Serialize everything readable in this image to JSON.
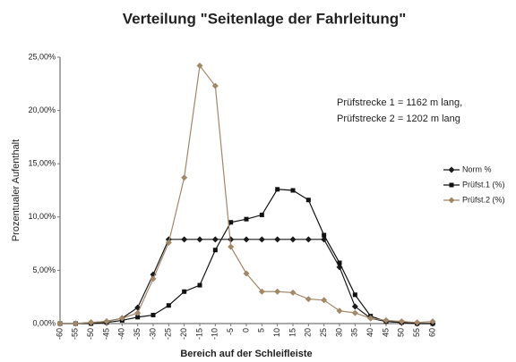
{
  "chart_data": {
    "type": "line",
    "title": "Verteilung \"Seitenlage der Fahrleitung\"",
    "xlabel": "Bereich auf der Schleifleiste",
    "ylabel": "Prozentualer Aufenthalt",
    "annotations": [
      "Prüfstrecke 1 = 1162 m lang,",
      "Prüfstrecke 2 = 1202 m lang"
    ],
    "categories": [
      "-60",
      "-55",
      "-50",
      "-45",
      "-40",
      "-35",
      "-30",
      "-25",
      "-20",
      "-15",
      "-10",
      "-5",
      "0",
      "5",
      "10",
      "15",
      "20",
      "25",
      "30",
      "35",
      "40",
      "45",
      "50",
      "55",
      "60"
    ],
    "series": [
      {
        "name": "Norm %",
        "color": "#1a1a1a",
        "marker": "diamond",
        "values": [
          0,
          0,
          0.1,
          0.2,
          0.5,
          1.5,
          4.6,
          7.9,
          7.9,
          7.9,
          7.9,
          7.9,
          7.9,
          7.9,
          7.9,
          7.9,
          7.9,
          7.9,
          5.3,
          1.6,
          0.5,
          0.2,
          0.1,
          0,
          0
        ]
      },
      {
        "name": "Prüfst.1 (%)",
        "color": "#111111",
        "marker": "square",
        "values": [
          0,
          0,
          0,
          0.1,
          0.3,
          0.6,
          0.8,
          1.7,
          3.0,
          3.6,
          6.9,
          9.5,
          9.8,
          10.2,
          12.6,
          12.5,
          11.6,
          8.3,
          5.7,
          2.7,
          0.7,
          0.2,
          0.1,
          0,
          0
        ]
      },
      {
        "name": "Prüfst.2 (%)",
        "color": "#a08868",
        "marker": "diamond",
        "values": [
          0,
          0,
          0.1,
          0.2,
          0.5,
          1.0,
          4.2,
          7.6,
          13.7,
          24.2,
          22.3,
          7.2,
          4.7,
          3.0,
          3.0,
          2.9,
          2.3,
          2.2,
          1.2,
          1.0,
          0.5,
          0.3,
          0.2,
          0.1,
          0.2
        ]
      }
    ],
    "ylim": [
      0,
      25
    ],
    "yticks": [
      {
        "value": 0,
        "label": "0,00%"
      },
      {
        "value": 5,
        "label": "5,00%"
      },
      {
        "value": 10,
        "label": "10,00%"
      },
      {
        "value": 15,
        "label": "15,00%"
      },
      {
        "value": 20,
        "label": "20,00%"
      },
      {
        "value": 25,
        "label": "25,00%"
      }
    ],
    "grid": false,
    "legend": "right"
  }
}
